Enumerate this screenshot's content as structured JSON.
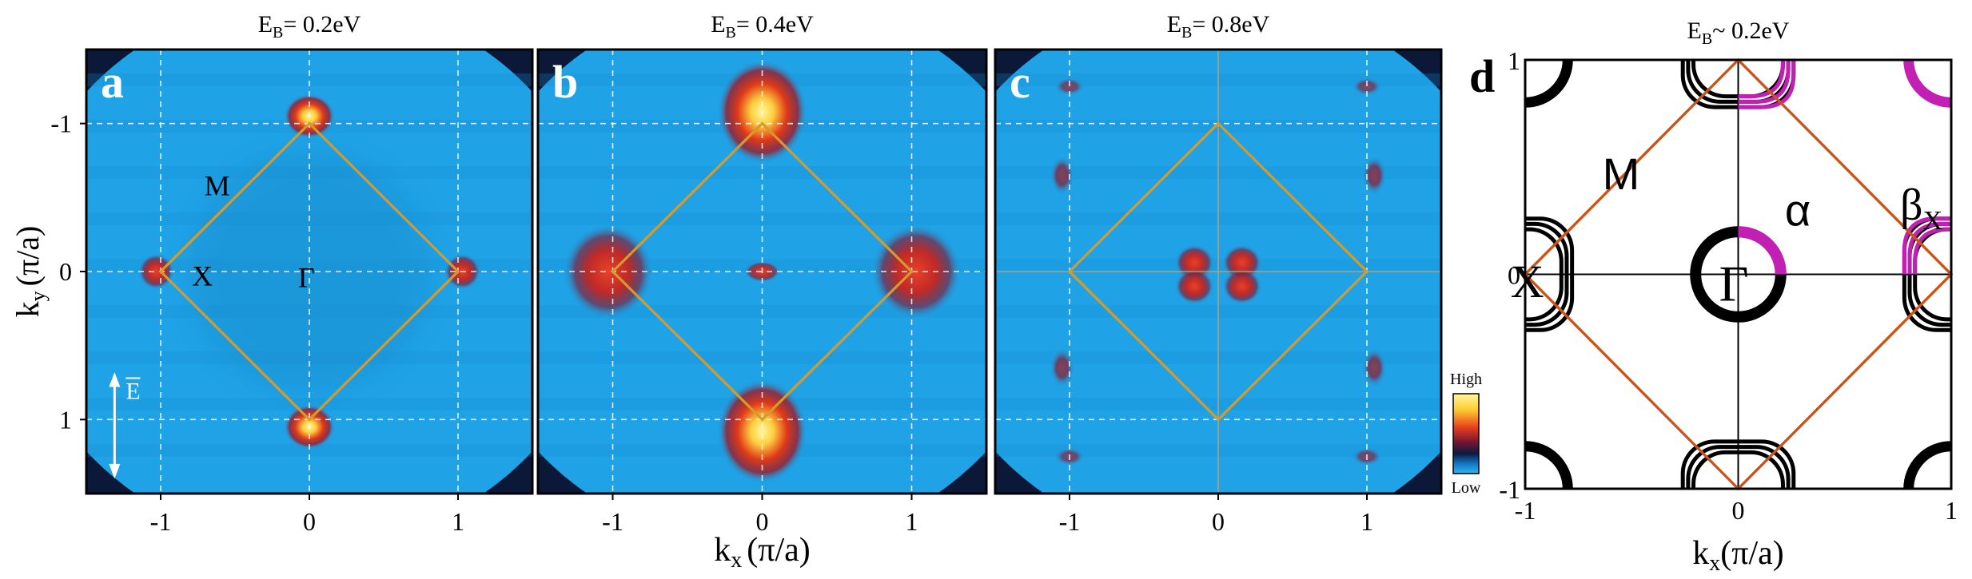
{
  "chart_data": [
    {
      "panel": "a",
      "type": "heatmap",
      "title_prefix": "E",
      "title_sub": "B",
      "title_value": "= 0.2eV",
      "xlabel_main": "k",
      "xlabel_sub": "x",
      "xlabel_unit": "(π/a)",
      "ylabel_main": "k",
      "ylabel_sub": "y",
      "ylabel_unit": "(π/a)",
      "xlim": [
        -1.5,
        1.5
      ],
      "ylim": [
        -1.5,
        1.5
      ],
      "xticks": [
        -1,
        0,
        1
      ],
      "yticks": [
        -1,
        0,
        1
      ],
      "tick_labels": [
        "-1",
        "0",
        "1"
      ],
      "brillouin_zone": [
        [
          0,
          1
        ],
        [
          1,
          0
        ],
        [
          0,
          -1
        ],
        [
          -1,
          0
        ]
      ],
      "labels": [
        {
          "text": "M",
          "x": -0.62,
          "y": 0.58
        },
        {
          "text": "X",
          "x": -0.72,
          "y": -0.03
        },
        {
          "text": "Γ",
          "x": -0.02,
          "y": -0.04
        }
      ],
      "polarization_label": "E",
      "hot_spots": [
        {
          "x": 0,
          "y": 1.05,
          "intensity": 1.0,
          "w": 0.17,
          "h": 0.15
        },
        {
          "x": 0,
          "y": -1.05,
          "intensity": 1.0,
          "w": 0.17,
          "h": 0.15
        },
        {
          "x": -1.03,
          "y": 0,
          "intensity": 0.55,
          "w": 0.12,
          "h": 0.12
        },
        {
          "x": 1.03,
          "y": 0,
          "intensity": 0.55,
          "w": 0.12,
          "h": 0.12
        }
      ]
    },
    {
      "panel": "b",
      "type": "heatmap",
      "title_prefix": "E",
      "title_sub": "B",
      "title_value": "= 0.4eV",
      "xlim": [
        -1.5,
        1.5
      ],
      "ylim": [
        -1.5,
        1.5
      ],
      "xticks": [
        -1,
        0,
        1
      ],
      "tick_labels": [
        "-1",
        "0",
        "1"
      ],
      "brillouin_zone": [
        [
          0,
          1
        ],
        [
          1,
          0
        ],
        [
          0,
          -1
        ],
        [
          -1,
          0
        ]
      ],
      "hot_spots": [
        {
          "x": 0,
          "y": 1.08,
          "intensity": 1.0,
          "w": 0.3,
          "h": 0.35
        },
        {
          "x": 0,
          "y": -1.08,
          "intensity": 1.0,
          "w": 0.3,
          "h": 0.35
        },
        {
          "x": -1.03,
          "y": 0,
          "intensity": 0.7,
          "w": 0.3,
          "h": 0.32
        },
        {
          "x": 1.03,
          "y": 0,
          "intensity": 0.7,
          "w": 0.3,
          "h": 0.32
        },
        {
          "x": 0,
          "y": 0,
          "intensity": 0.45,
          "w": 0.12,
          "h": 0.07
        }
      ]
    },
    {
      "panel": "c",
      "type": "heatmap",
      "title_prefix": "E",
      "title_sub": "B",
      "title_value": "= 0.8eV",
      "xlim": [
        -1.5,
        1.5
      ],
      "ylim": [
        -1.5,
        1.5
      ],
      "xticks": [
        -1,
        0,
        1
      ],
      "tick_labels": [
        "-1",
        "0",
        "1"
      ],
      "brillouin_zone": [
        [
          0,
          1
        ],
        [
          1,
          0
        ],
        [
          0,
          -1
        ],
        [
          -1,
          0
        ]
      ],
      "hot_spots": [
        {
          "x": -0.16,
          "y": 0.06,
          "intensity": 0.5,
          "w": 0.13,
          "h": 0.12
        },
        {
          "x": 0.16,
          "y": 0.06,
          "intensity": 0.5,
          "w": 0.13,
          "h": 0.12
        },
        {
          "x": -0.16,
          "y": -0.1,
          "intensity": 0.5,
          "w": 0.13,
          "h": 0.12
        },
        {
          "x": 0.16,
          "y": -0.1,
          "intensity": 0.5,
          "w": 0.13,
          "h": 0.12
        },
        {
          "x": -1.05,
          "y": 0.65,
          "intensity": 0.3,
          "w": 0.08,
          "h": 0.13
        },
        {
          "x": 1.05,
          "y": 0.65,
          "intensity": 0.3,
          "w": 0.08,
          "h": 0.13
        },
        {
          "x": -1.05,
          "y": -0.65,
          "intensity": 0.3,
          "w": 0.08,
          "h": 0.13
        },
        {
          "x": 1.05,
          "y": -0.65,
          "intensity": 0.3,
          "w": 0.08,
          "h": 0.13
        },
        {
          "x": -1.0,
          "y": 1.25,
          "intensity": 0.22,
          "w": 0.1,
          "h": 0.06
        },
        {
          "x": 1.0,
          "y": 1.25,
          "intensity": 0.22,
          "w": 0.1,
          "h": 0.06
        },
        {
          "x": -1.0,
          "y": -1.25,
          "intensity": 0.22,
          "w": 0.1,
          "h": 0.06
        },
        {
          "x": 1.0,
          "y": -1.25,
          "intensity": 0.22,
          "w": 0.1,
          "h": 0.06
        }
      ],
      "colorbar": {
        "high_label": "High",
        "low_label": "Low"
      }
    },
    {
      "panel": "d",
      "type": "line",
      "title_prefix": "E",
      "title_sub": "B",
      "title_value": "~ 0.2eV",
      "xlabel_main": "k",
      "xlabel_sub": "x",
      "xlabel_unit": "(π/a)",
      "xlim": [
        -1,
        1
      ],
      "ylim": [
        -1,
        1
      ],
      "xtick_labels": [
        {
          "x": -1,
          "text": "-1"
        },
        {
          "x": 0,
          "text": "0"
        },
        {
          "x": 1,
          "text": "1"
        }
      ],
      "ytick_labels": [
        {
          "y": 1,
          "text": "1"
        },
        {
          "y": 0,
          "text": "0"
        },
        {
          "y": -1,
          "text": "-1"
        }
      ],
      "brillouin_zone": [
        [
          0,
          1
        ],
        [
          1,
          0
        ],
        [
          0,
          -1
        ],
        [
          -1,
          0
        ]
      ],
      "labels": [
        {
          "text": "M",
          "x": -0.55,
          "y": 0.47
        },
        {
          "text": "α",
          "x": 0.28,
          "y": 0.3
        },
        {
          "text": "Γ",
          "x": -0.02,
          "y": -0.04
        },
        {
          "text": "X",
          "x": -0.99,
          "y": -0.03
        }
      ],
      "beta_label": {
        "main": "β",
        "sub": "X",
        "x": 0.76,
        "y": 0.33
      },
      "pocket_color": "#000000",
      "highlight_color": "#c21fb4",
      "bz_color": "#c8561a"
    }
  ],
  "panel_letters": [
    "a",
    "b",
    "c",
    "d"
  ]
}
